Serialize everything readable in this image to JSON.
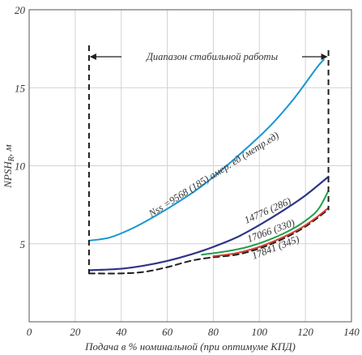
{
  "chart_data": {
    "type": "line",
    "xlabel": "Подача в % номинальной (при оптимуме КПД)",
    "ylabel": "NPSH",
    "ylabel_sub": "R",
    "ylabel_unit": ", м",
    "xlim": [
      0,
      140
    ],
    "ylim": [
      0,
      20
    ],
    "xticks": [
      0,
      20,
      40,
      60,
      80,
      100,
      120,
      140
    ],
    "yticks": [
      5,
      10,
      15,
      20
    ],
    "grid": true,
    "range_annotation": {
      "label": "Диапазон стабильной работы",
      "x_start": 26,
      "x_end": 130
    },
    "series": [
      {
        "name": "Nss =9568 (185) амер. ед (метр.ед)",
        "color": "#1a96d2",
        "style": "solid",
        "x": [
          26,
          35,
          45,
          55,
          65,
          75,
          85,
          95,
          105,
          115,
          125,
          128
        ],
        "y": [
          5.2,
          5.4,
          6.0,
          6.8,
          7.7,
          8.7,
          9.9,
          11.2,
          12.6,
          14.3,
          16.3,
          16.8
        ]
      },
      {
        "name": "14776 (286)",
        "color": "#2e3585",
        "style": "solid",
        "x": [
          26,
          40,
          50,
          60,
          70,
          80,
          90,
          100,
          110,
          120,
          130
        ],
        "y": [
          3.3,
          3.4,
          3.6,
          3.9,
          4.3,
          4.8,
          5.4,
          6.2,
          7.1,
          8.1,
          9.3
        ]
      },
      {
        "name": "17066 (330)",
        "color": "#21a04a",
        "style": "solid",
        "x": [
          75,
          85,
          95,
          105,
          115,
          122,
          126,
          130
        ],
        "y": [
          4.3,
          4.5,
          4.8,
          5.3,
          6.0,
          6.7,
          7.3,
          8.4
        ]
      },
      {
        "name": "17841 (345)",
        "color": "#d63b2f",
        "style": "solid",
        "x": [
          80,
          90,
          100,
          110,
          118,
          124,
          130
        ],
        "y": [
          4.2,
          4.4,
          4.8,
          5.4,
          6.0,
          6.6,
          7.3
        ]
      },
      {
        "name": "",
        "color": "#1e1e1e",
        "style": "dashed",
        "x": [
          26,
          40,
          50,
          60,
          70,
          78,
          90,
          100,
          110,
          120,
          130
        ],
        "y": [
          3.1,
          3.1,
          3.2,
          3.5,
          3.9,
          4.1,
          4.3,
          4.7,
          5.3,
          6.1,
          7.2
        ]
      }
    ]
  }
}
